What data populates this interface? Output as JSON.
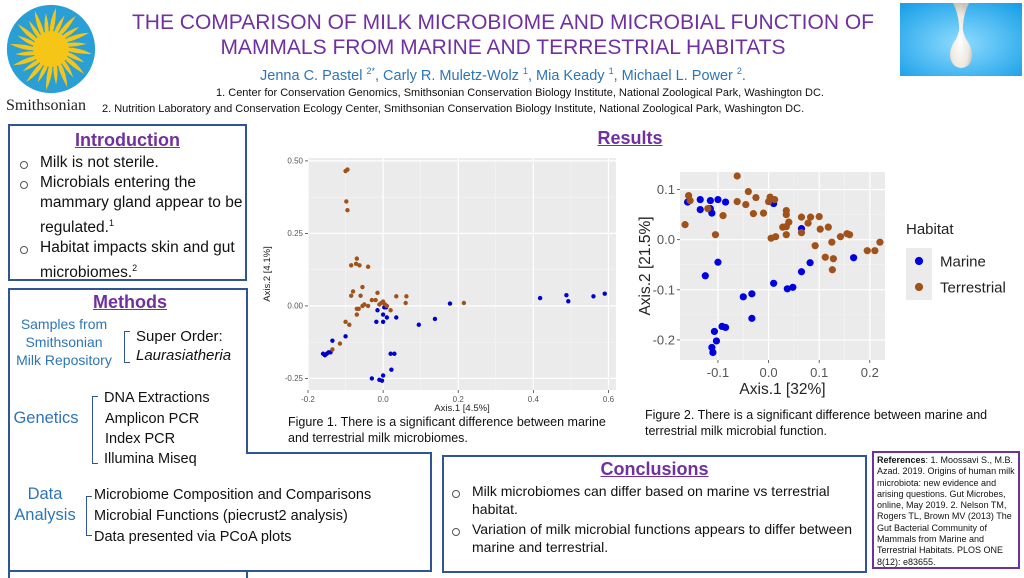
{
  "header": {
    "title_line1": "THE COMPARISON OF MILK MICROBIOME AND MICROBIAL FUNCTION OF",
    "title_line2": "MAMMALS FROM MARINE AND TERRESTRIAL HABITATS",
    "authors": [
      {
        "name": "Jenna C. Pastel",
        "sup": "2*"
      },
      {
        "name": "Carly R. Muletz-Wolz",
        "sup": "1"
      },
      {
        "name": "Mia Keady",
        "sup": "1"
      },
      {
        "name": "Michael L. Power",
        "sup": "2"
      }
    ],
    "affiliation1": "1. Center for Conservation Genomics, Smithsonian Conservation Biology Institute, National Zoological Park, Washington DC.",
    "affiliation2": "2. Nutrition Laboratory and Conservation Ecology Center, Smithsonian Conservation Biology Institute, National Zoological Park, Washington DC.",
    "logo_text": "Smithsonian",
    "logo_icon": "smithsonian-sun-icon",
    "image_icon": "milk-drop-icon",
    "colors": {
      "title": "#7030a0",
      "authors": "#2e75b6",
      "border": "#2f5597",
      "sun": "#f5c518",
      "sun_bg": "#2a9fd6"
    }
  },
  "introduction": {
    "title": "Introduction",
    "bullets": [
      {
        "text": "Milk is not sterile.",
        "sup": ""
      },
      {
        "text": "Microbials entering the mammary gland appear to be regulated.",
        "sup": "1"
      },
      {
        "text": "Habitat impacts skin and gut microbiomes.",
        "sup": "2"
      }
    ]
  },
  "methods": {
    "title": "Methods",
    "groups": [
      {
        "label": "Samples from Smithsonian Milk Repository",
        "items": [
          "Super Order:",
          "Laurasiatheria"
        ]
      },
      {
        "label": "Genetics",
        "items": [
          "DNA Extractions",
          "Amplicon PCR",
          "Index PCR",
          "Illumina Miseq"
        ]
      },
      {
        "label": "Data Analysis",
        "items": [
          "Microbiome Composition and Comparisons",
          "Microbial Functions (piecrust2 analysis)",
          "Data presented via PCoA plots"
        ]
      }
    ],
    "label_lines": {
      "samples": [
        "Samples from",
        "Smithsonian",
        "Milk Repository"
      ],
      "data": [
        "Data",
        "Analysis"
      ]
    }
  },
  "results": {
    "title": "Results",
    "figure1_caption": "Figure 1. There is a significant difference between marine and terrestrial milk microbiomes.",
    "figure2_caption": "Figure 2. There is a significant difference between marine and terrestrial milk microbial function."
  },
  "conclusions": {
    "title": "Conclusions",
    "bullets": [
      "Milk microbiomes can differ based on marine vs terrestrial habitat.",
      "Variation of milk microbial functions appears to differ between marine and terrestrial."
    ]
  },
  "references": {
    "label": "References",
    "text": ": 1. Moossavi S., M.B. Azad. 2019. Origins of human milk microbiota: new evidence and arising questions. Gut Microbes, online, May 2019. 2. Nelson TM, Rogers TL, Brown MV (2013) The Gut Bacterial Community of Mammals from Marine and Terrestrial Habitats. PLOS ONE 8(12): e83655."
  },
  "chart_data": [
    {
      "type": "scatter",
      "title": "",
      "xlabel": "Axis.1   [4.5%]",
      "ylabel": "Axis.2   [4.1%]",
      "xlim": [
        -0.2,
        0.62
      ],
      "ylim": [
        -0.29,
        0.51
      ],
      "xticks": [
        -0.2,
        0.0,
        0.2,
        0.4,
        0.6
      ],
      "xtick_labels": [
        "-0.2",
        "0.0",
        "0.2",
        "0.4",
        "0.6"
      ],
      "yticks": [
        -0.25,
        0.0,
        0.25,
        0.5
      ],
      "ytick_labels": [
        "-0.25",
        "0.00",
        "0.25",
        "0.50"
      ],
      "grid": true,
      "legend": "none",
      "series": [
        {
          "name": "Marine",
          "color": "#0000cc",
          "points": [
            [
              -0.16,
              -0.165
            ],
            [
              -0.155,
              -0.17
            ],
            [
              -0.15,
              -0.165
            ],
            [
              -0.145,
              -0.16
            ],
            [
              -0.14,
              -0.16
            ],
            [
              -0.135,
              -0.12
            ],
            [
              -0.1,
              -0.105
            ],
            [
              -0.015,
              -0.015
            ],
            [
              -0.018,
              -0.055
            ],
            [
              0.0,
              -0.055
            ],
            [
              0.0,
              -0.03
            ],
            [
              0.005,
              0.0
            ],
            [
              0.008,
              -0.005
            ],
            [
              0.01,
              -0.04
            ],
            [
              0.003,
              -0.005
            ],
            [
              0.035,
              -0.04
            ],
            [
              0.095,
              -0.065
            ],
            [
              0.138,
              -0.045
            ],
            [
              0.178,
              0.008
            ],
            [
              0.02,
              -0.165
            ],
            [
              0.03,
              -0.165
            ],
            [
              0.022,
              -0.22
            ],
            [
              -0.03,
              -0.25
            ],
            [
              -0.01,
              -0.255
            ],
            [
              -0.003,
              -0.258
            ],
            [
              0.0,
              -0.24
            ],
            [
              0.418,
              0.027
            ],
            [
              0.488,
              0.037
            ],
            [
              0.493,
              0.016
            ],
            [
              0.56,
              0.033
            ],
            [
              0.59,
              0.042
            ]
          ]
        },
        {
          "name": "Terrestrial",
          "color": "#a0521a",
          "points": [
            [
              -0.1,
              0.465
            ],
            [
              -0.095,
              0.47
            ],
            [
              -0.098,
              0.36
            ],
            [
              -0.095,
              0.33
            ],
            [
              -0.07,
              0.163
            ],
            [
              -0.072,
              0.145
            ],
            [
              -0.063,
              0.14
            ],
            [
              -0.085,
              0.14
            ],
            [
              -0.04,
              0.135
            ],
            [
              -0.08,
              0.05
            ],
            [
              -0.085,
              0.035
            ],
            [
              -0.055,
              0.065
            ],
            [
              -0.06,
              0.035
            ],
            [
              -0.015,
              0.045
            ],
            [
              -0.05,
              0.005
            ],
            [
              -0.04,
              0.0
            ],
            [
              -0.03,
              0.02
            ],
            [
              -0.02,
              0.02
            ],
            [
              -0.01,
              0.005
            ],
            [
              -0.005,
              0.01
            ],
            [
              0.0,
              0.015
            ],
            [
              0.005,
              0.005
            ],
            [
              0.01,
              0.0
            ],
            [
              0.02,
              -0.015
            ],
            [
              -0.07,
              -0.01
            ],
            [
              -0.065,
              -0.01
            ],
            [
              -0.07,
              -0.03
            ],
            [
              -0.055,
              0.0
            ],
            [
              0.035,
              0.033
            ],
            [
              0.062,
              0.033
            ],
            [
              0.06,
              0.01
            ],
            [
              -0.1,
              -0.055
            ],
            [
              -0.09,
              -0.065
            ],
            [
              -0.115,
              -0.13
            ],
            [
              -0.135,
              -0.15
            ],
            [
              0.215,
              0.01
            ]
          ]
        }
      ]
    },
    {
      "type": "scatter",
      "title": "",
      "xlabel": "Axis.1   [32%]",
      "ylabel": "Axis.2   [21.5%]",
      "xlim": [
        -0.175,
        0.23
      ],
      "ylim": [
        -0.24,
        0.135
      ],
      "xticks": [
        -0.1,
        0.0,
        0.1,
        0.2
      ],
      "xtick_labels": [
        "-0.1",
        "0.0",
        "0.1",
        "0.2"
      ],
      "yticks": [
        -0.2,
        -0.1,
        0.0,
        0.1
      ],
      "ytick_labels": [
        "-0.2",
        "-0.1",
        "0.0",
        "0.1"
      ],
      "grid": true,
      "legend": "right",
      "legend_title": "Habitat",
      "series": [
        {
          "name": "Marine",
          "color": "#0000e0",
          "points": [
            [
              -0.16,
              0.075
            ],
            [
              -0.135,
              0.08
            ],
            [
              -0.135,
              0.06
            ],
            [
              -0.115,
              0.078
            ],
            [
              -0.115,
              0.062
            ],
            [
              -0.112,
              0.053
            ],
            [
              -0.1,
              0.08
            ],
            [
              -0.085,
              0.075
            ],
            [
              0.01,
              0.072
            ],
            [
              0.065,
              0.022
            ],
            [
              -0.1,
              -0.045
            ],
            [
              -0.125,
              -0.072
            ],
            [
              0.168,
              -0.036
            ],
            [
              0.082,
              -0.046
            ],
            [
              0.065,
              -0.064
            ],
            [
              0.01,
              -0.087
            ],
            [
              0.048,
              -0.095
            ],
            [
              0.037,
              -0.098
            ],
            [
              -0.05,
              -0.114
            ],
            [
              -0.033,
              -0.108
            ],
            [
              -0.033,
              -0.157
            ],
            [
              -0.092,
              -0.173
            ],
            [
              -0.085,
              -0.175
            ],
            [
              -0.107,
              -0.183
            ],
            [
              -0.103,
              -0.202
            ],
            [
              -0.112,
              -0.215
            ],
            [
              -0.11,
              -0.225
            ]
          ]
        },
        {
          "name": "Terrestrial",
          "color": "#a0521a",
          "points": [
            [
              -0.165,
              0.03
            ],
            [
              -0.158,
              0.088
            ],
            [
              -0.155,
              0.078
            ],
            [
              -0.12,
              0.062
            ],
            [
              -0.105,
              0.01
            ],
            [
              -0.09,
              0.048
            ],
            [
              -0.062,
              0.127
            ],
            [
              -0.062,
              0.076
            ],
            [
              -0.04,
              0.096
            ],
            [
              -0.045,
              0.07
            ],
            [
              -0.03,
              0.052
            ],
            [
              -0.025,
              0.084
            ],
            [
              -0.01,
              0.053
            ],
            [
              0.0,
              0.076
            ],
            [
              0.003,
              0.085
            ],
            [
              0.012,
              0.08
            ],
            [
              0.005,
              0.003
            ],
            [
              0.014,
              0.006
            ],
            [
              0.035,
              0.058
            ],
            [
              0.035,
              0.05
            ],
            [
              0.04,
              0.035
            ],
            [
              0.035,
              0.026
            ],
            [
              0.028,
              0.025
            ],
            [
              0.035,
              0.01
            ],
            [
              0.065,
              0.045
            ],
            [
              0.065,
              0.014
            ],
            [
              0.078,
              0.033
            ],
            [
              0.083,
              0.045
            ],
            [
              0.1,
              0.046
            ],
            [
              0.102,
              0.021
            ],
            [
              0.118,
              0.025
            ],
            [
              0.092,
              -0.012
            ],
            [
              0.125,
              -0.005
            ],
            [
              0.142,
              0.006
            ],
            [
              0.155,
              0.012
            ],
            [
              0.16,
              0.01
            ],
            [
              0.112,
              -0.035
            ],
            [
              0.128,
              -0.038
            ],
            [
              0.126,
              -0.06
            ],
            [
              0.195,
              -0.022
            ],
            [
              0.21,
              -0.022
            ],
            [
              0.22,
              -0.005
            ]
          ]
        }
      ]
    }
  ]
}
